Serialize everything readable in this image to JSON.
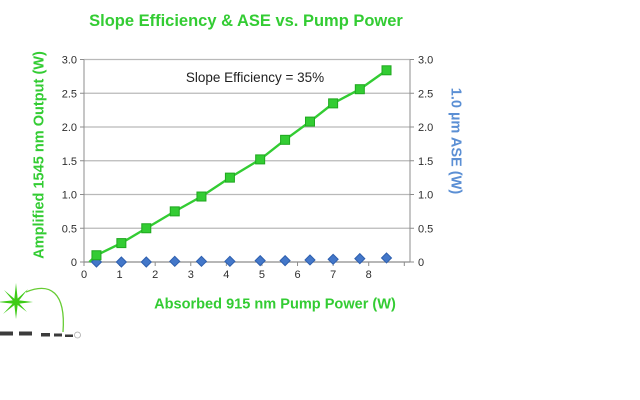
{
  "colors": {
    "green": "#33cc33",
    "green_marker_stroke": "#1fa81f",
    "blue": "#4377c9",
    "blue_marker_stroke": "#2e5fae",
    "blue_label": "#5b8fd4",
    "grid": "#b9b9b9",
    "axis": "#8c8c8c",
    "tick_text": "#2e2e2e",
    "annotation_text": "#1f1f1f",
    "logo_star": "#3ecb17",
    "logo_arc": "#66cc33",
    "logo_letters": "#3b3b3b"
  },
  "chart_data": {
    "type": "line",
    "title": "Slope Efficiency & ASE vs. Pump Power",
    "annotation": "Slope Efficiency = 35%",
    "xlabel": "Absorbed 915 nm Pump Power (W)",
    "ylabel_left": "Amplified 1545 nm Output (W)",
    "ylabel_right": "1.0 µm ASE (W)",
    "xlim": [
      0,
      9.16
    ],
    "ylim": [
      0,
      3.0
    ],
    "grid": "horizontal",
    "legend": "none",
    "x_ticks": [
      0,
      1,
      2,
      3,
      4,
      5,
      6,
      7,
      8,
      9
    ],
    "x_tick_labels": [
      "0",
      "1",
      "2",
      "3",
      "4",
      "5",
      "6",
      "7",
      "8",
      ""
    ],
    "y_ticks": [
      {
        "v": 0.0,
        "label": "0"
      },
      {
        "v": 0.5,
        "label": "0.5"
      },
      {
        "v": 1.0,
        "label": "1.0"
      },
      {
        "v": 1.5,
        "label": "1.5"
      },
      {
        "v": 2.0,
        "label": "2.0"
      },
      {
        "v": 2.5,
        "label": "2.5"
      },
      {
        "v": 3.0,
        "label": "3.0"
      }
    ],
    "x": [
      0.35,
      1.05,
      1.75,
      2.55,
      3.3,
      4.1,
      4.95,
      5.65,
      6.35,
      7.0,
      7.75,
      8.5
    ],
    "series": [
      {
        "name": "Amplified 1545 nm Output",
        "marker": "square",
        "line": true,
        "line_from": [
          0.15,
          0.0
        ],
        "values": [
          0.1,
          0.28,
          0.5,
          0.75,
          0.97,
          1.25,
          1.52,
          1.81,
          2.08,
          2.35,
          2.56,
          2.84
        ]
      },
      {
        "name": "1.0 µm ASE",
        "marker": "diamond",
        "line": false,
        "values": [
          0.0,
          0.0,
          0.0,
          0.01,
          0.01,
          0.01,
          0.02,
          0.02,
          0.03,
          0.04,
          0.05,
          0.06
        ]
      }
    ],
    "slope_efficiency_pct": 35
  },
  "logo": {
    "registered_mark": "®"
  }
}
